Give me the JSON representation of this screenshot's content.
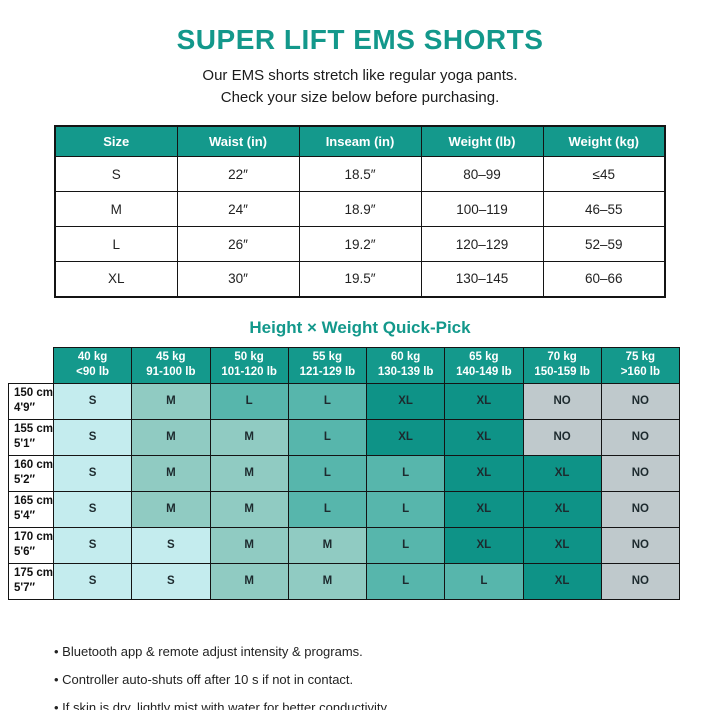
{
  "page": {
    "title": "SUPER LIFT EMS SHORTS",
    "subtitle_line1": "Our EMS shorts stretch like regular yoga pants.",
    "subtitle_line2": "Check your size below before purchasing."
  },
  "size_table": {
    "headers": [
      "Size",
      "Waist (in)",
      "Inseam (in)",
      "Weight (lb)",
      "Weight (kg)"
    ],
    "rows": [
      [
        "S",
        "22″",
        "18.5″",
        "80–99",
        "≤45"
      ],
      [
        "M",
        "24″",
        "18.9″",
        "100–119",
        "46–55"
      ],
      [
        "L",
        "26″",
        "19.2″",
        "120–129",
        "52–59"
      ],
      [
        "XL",
        "30″",
        "19.5″",
        "130–145",
        "60–66"
      ]
    ]
  },
  "quick_pick": {
    "heading": "Height × Weight Quick-Pick",
    "col_headers": [
      {
        "kg": "40 kg",
        "lb": "<90 lb"
      },
      {
        "kg": "45 kg",
        "lb": "91-100 lb"
      },
      {
        "kg": "50 kg",
        "lb": "101-120 lb"
      },
      {
        "kg": "55 kg",
        "lb": "121-129 lb"
      },
      {
        "kg": "60 kg",
        "lb": "130-139 lb"
      },
      {
        "kg": "65 kg",
        "lb": "140-149 lb"
      },
      {
        "kg": "70 kg",
        "lb": "150-159 lb"
      },
      {
        "kg": "75 kg",
        "lb": ">160 lb"
      }
    ],
    "rows": [
      {
        "cm": "150 cm",
        "ft": "4'9″",
        "cells": [
          "S",
          "M",
          "L",
          "L",
          "XL",
          "XL",
          "NO",
          "NO"
        ]
      },
      {
        "cm": "155 cm",
        "ft": "5'1″",
        "cells": [
          "S",
          "M",
          "M",
          "L",
          "XL",
          "XL",
          "NO",
          "NO"
        ]
      },
      {
        "cm": "160 cm",
        "ft": "5'2″",
        "cells": [
          "S",
          "M",
          "M",
          "L",
          "L",
          "XL",
          "XL",
          "NO"
        ]
      },
      {
        "cm": "165 cm",
        "ft": "5'4″",
        "cells": [
          "S",
          "M",
          "M",
          "L",
          "L",
          "XL",
          "XL",
          "NO"
        ]
      },
      {
        "cm": "170 cm",
        "ft": "5'6″",
        "cells": [
          "S",
          "S",
          "M",
          "M",
          "L",
          "XL",
          "XL",
          "NO"
        ]
      },
      {
        "cm": "175 cm",
        "ft": "5'7″",
        "cells": [
          "S",
          "S",
          "M",
          "M",
          "L",
          "L",
          "XL",
          "NO"
        ]
      }
    ]
  },
  "notes": [
    "Bluetooth app & remote adjust intensity & programs.",
    "Controller auto-shuts off after 10 s if not in contact.",
    "If skin is dry, lightly mist with water for better conductivity."
  ],
  "colors": {
    "accent": "#13988b",
    "header_teal": "#14998c",
    "border": "#141414",
    "cell_s": "#c4ecee",
    "cell_m": "#90cbc2",
    "cell_l": "#57b6ac",
    "cell_xl": "#0e9387",
    "cell_no": "#bfc9cc"
  }
}
